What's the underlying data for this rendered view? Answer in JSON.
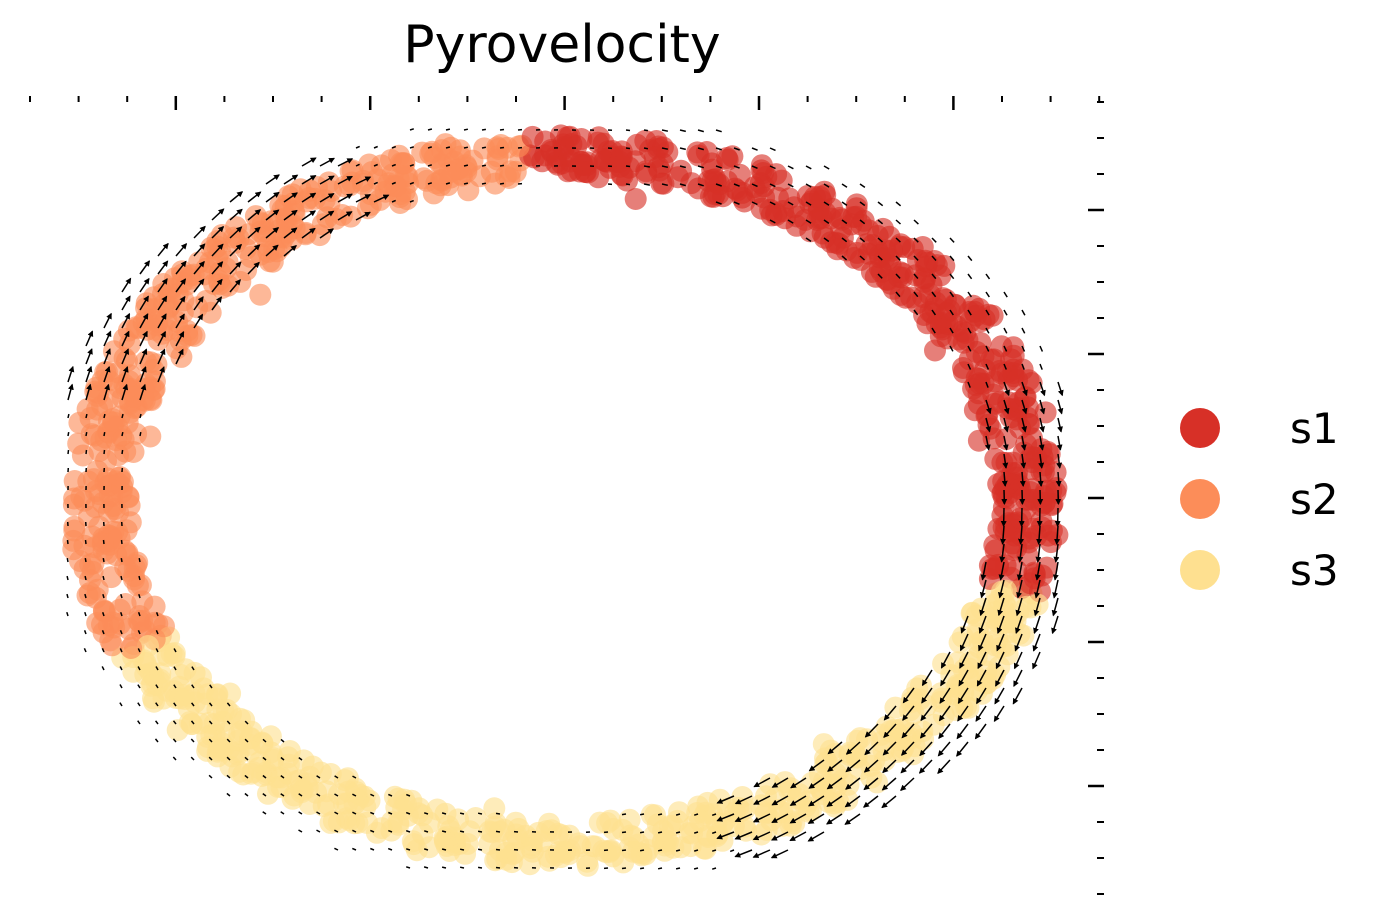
{
  "chart_data": {
    "type": "scatter",
    "title": "Pyrovelocity",
    "xlabel": "",
    "ylabel": "",
    "xlim": [
      -1.0,
      1.0
    ],
    "ylim": [
      -1.0,
      1.0
    ],
    "grid": false,
    "legend_position": "right",
    "description_embedding": "circular trajectory with velocity arrows",
    "series": [
      {
        "name": "s1",
        "color": "#d73027",
        "arc_deg": [
          -15,
          95
        ]
      },
      {
        "name": "s2",
        "color": "#fc8d59",
        "arc_deg": [
          95,
          205
        ]
      },
      {
        "name": "s3",
        "color": "#fee090",
        "arc_deg": [
          205,
          345
        ]
      }
    ],
    "velocity_arrows": {
      "color": "#000000",
      "direction": "clockwise"
    }
  }
}
